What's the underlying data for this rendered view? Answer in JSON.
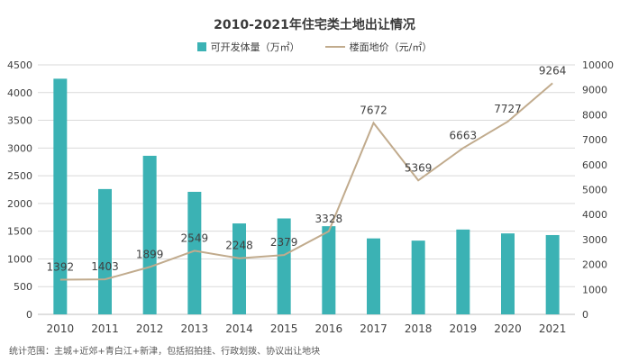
{
  "colors": {
    "bar": "#3bb2b4",
    "line": "#c1ab8d",
    "grid": "#d9d9d9",
    "axis_text": "#404040"
  },
  "chart_data": {
    "type": "bar+line",
    "title": "2010-2021年住宅类土地出让情况",
    "categories": [
      "2010",
      "2011",
      "2012",
      "2013",
      "2014",
      "2015",
      "2016",
      "2017",
      "2018",
      "2019",
      "2020",
      "2021"
    ],
    "series": [
      {
        "name": "可开发体量（万㎡）",
        "type": "bar",
        "axis": "left",
        "values": [
          4250,
          2260,
          2860,
          2210,
          1640,
          1730,
          1590,
          1370,
          1330,
          1530,
          1460,
          1430
        ]
      },
      {
        "name": "楼面地价（元/㎡）",
        "type": "line",
        "axis": "right",
        "values": [
          1392,
          1403,
          1899,
          2549,
          2248,
          2379,
          3328,
          7672,
          5369,
          6663,
          7727,
          9264
        ],
        "labels": [
          "1392",
          "1403",
          "1899",
          "2549",
          "2248",
          "2379",
          "3328",
          "7672",
          "5369",
          "6663",
          "7727",
          "9264"
        ]
      }
    ],
    "y_left": {
      "min": 0,
      "max": 4500,
      "step": 500,
      "ticks": [
        "0",
        "500",
        "1000",
        "1500",
        "2000",
        "2500",
        "3000",
        "3500",
        "4000",
        "4500"
      ]
    },
    "y_right": {
      "min": 0,
      "max": 10000,
      "step": 1000,
      "ticks": [
        "0",
        "1000",
        "2000",
        "3000",
        "4000",
        "5000",
        "6000",
        "7000",
        "8000",
        "9000",
        "10000"
      ]
    },
    "grid": true,
    "legend_position": "top-center",
    "note": "统计范围：主城+近郊+青白江+新津，包括招拍挂、行政划拨、协议出让地块"
  }
}
